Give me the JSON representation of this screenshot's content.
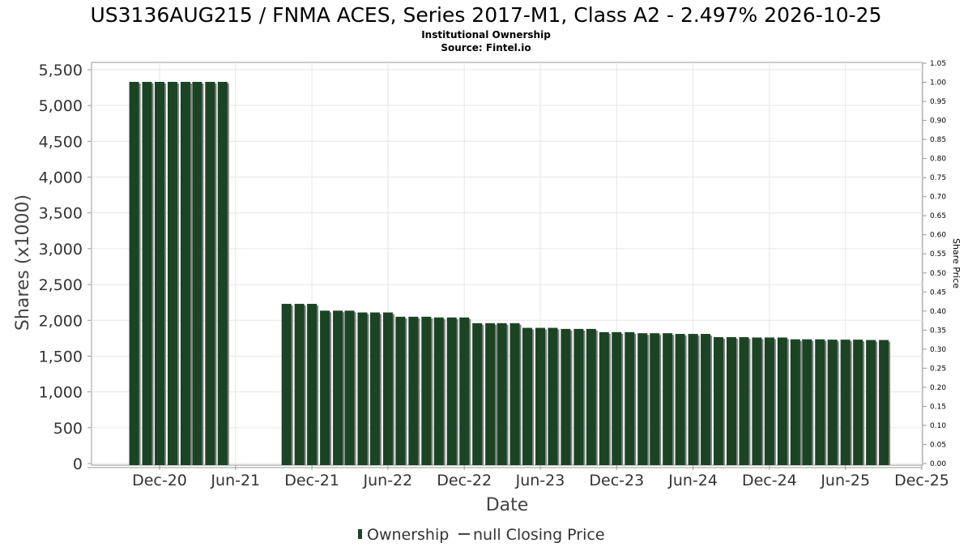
{
  "chart_data": {
    "type": "bar",
    "title": "US3136AUG215 / FNMA ACES, Series 2017-M1, Class A2 - 2.497% 2026-10-25",
    "subtitle": "Institutional Ownership",
    "source": "Source: Fintel.io",
    "xlabel": "Date",
    "ylabel": "Shares (x1000)",
    "y2label": "Share Price",
    "ylim": [
      0,
      5500
    ],
    "y2lim": [
      0,
      1.05
    ],
    "grid": true,
    "legend_position": "bottom",
    "x_start": "2020-06-01",
    "x_end": "2025-12-01",
    "x_tick_labels": [
      {
        "label": "Dec-20",
        "date": "2020-12-01"
      },
      {
        "label": "Jun-21",
        "date": "2021-06-01"
      },
      {
        "label": "Dec-21",
        "date": "2021-12-01"
      },
      {
        "label": "Jun-22",
        "date": "2022-06-01"
      },
      {
        "label": "Dec-22",
        "date": "2022-12-01"
      },
      {
        "label": "Jun-23",
        "date": "2023-06-01"
      },
      {
        "label": "Dec-23",
        "date": "2023-12-01"
      },
      {
        "label": "Jun-24",
        "date": "2024-06-01"
      },
      {
        "label": "Dec-24",
        "date": "2024-12-01"
      },
      {
        "label": "Jun-25",
        "date": "2025-06-01"
      },
      {
        "label": "Dec-25",
        "date": "2025-12-01"
      }
    ],
    "y_tick_labels": [
      "0",
      "500",
      "1,000",
      "1,500",
      "2,000",
      "2,500",
      "3,000",
      "3,500",
      "4,000",
      "4,500",
      "5,000",
      "5,500"
    ],
    "y_ticks": [
      0,
      500,
      1000,
      1500,
      2000,
      2500,
      3000,
      3500,
      4000,
      4500,
      5000,
      5500
    ],
    "y2_tick_labels": [
      "0.00",
      "0.05",
      "0.10",
      "0.15",
      "0.20",
      "0.25",
      "0.30",
      "0.35",
      "0.40",
      "0.45",
      "0.50",
      "0.55",
      "0.60",
      "0.65",
      "0.70",
      "0.75",
      "0.80",
      "0.85",
      "0.90",
      "0.95",
      "1.00",
      "1.05"
    ],
    "y2_ticks": [
      0,
      0.05,
      0.1,
      0.15,
      0.2,
      0.25,
      0.3,
      0.35,
      0.4,
      0.45,
      0.5,
      0.55,
      0.6,
      0.65,
      0.7,
      0.75,
      0.8,
      0.85,
      0.9,
      0.95,
      1.0,
      1.05
    ],
    "series": [
      {
        "name": "Ownership",
        "color": "#1b4425",
        "shadow_color": "#808080",
        "points": [
          {
            "date": "2020-10-01",
            "value": 5330
          },
          {
            "date": "2020-11-01",
            "value": 5330
          },
          {
            "date": "2020-12-01",
            "value": 5330
          },
          {
            "date": "2021-01-01",
            "value": 5330
          },
          {
            "date": "2021-02-01",
            "value": 5330
          },
          {
            "date": "2021-03-01",
            "value": 5330
          },
          {
            "date": "2021-04-01",
            "value": 5330
          },
          {
            "date": "2021-05-01",
            "value": 5330
          },
          {
            "date": "2021-10-01",
            "value": 2230
          },
          {
            "date": "2021-11-01",
            "value": 2230
          },
          {
            "date": "2021-12-01",
            "value": 2230
          },
          {
            "date": "2022-01-01",
            "value": 2135
          },
          {
            "date": "2022-02-01",
            "value": 2135
          },
          {
            "date": "2022-03-01",
            "value": 2135
          },
          {
            "date": "2022-04-01",
            "value": 2110
          },
          {
            "date": "2022-05-01",
            "value": 2110
          },
          {
            "date": "2022-06-01",
            "value": 2110
          },
          {
            "date": "2022-07-01",
            "value": 2050
          },
          {
            "date": "2022-08-01",
            "value": 2050
          },
          {
            "date": "2022-09-01",
            "value": 2050
          },
          {
            "date": "2022-10-01",
            "value": 2040
          },
          {
            "date": "2022-11-01",
            "value": 2040
          },
          {
            "date": "2022-12-01",
            "value": 2040
          },
          {
            "date": "2023-01-01",
            "value": 1960
          },
          {
            "date": "2023-02-01",
            "value": 1960
          },
          {
            "date": "2023-03-01",
            "value": 1960
          },
          {
            "date": "2023-04-01",
            "value": 1960
          },
          {
            "date": "2023-05-01",
            "value": 1895
          },
          {
            "date": "2023-06-01",
            "value": 1895
          },
          {
            "date": "2023-07-01",
            "value": 1895
          },
          {
            "date": "2023-08-01",
            "value": 1880
          },
          {
            "date": "2023-09-01",
            "value": 1880
          },
          {
            "date": "2023-10-01",
            "value": 1880
          },
          {
            "date": "2023-11-01",
            "value": 1835
          },
          {
            "date": "2023-12-01",
            "value": 1835
          },
          {
            "date": "2024-01-01",
            "value": 1835
          },
          {
            "date": "2024-02-01",
            "value": 1820
          },
          {
            "date": "2024-03-01",
            "value": 1820
          },
          {
            "date": "2024-04-01",
            "value": 1820
          },
          {
            "date": "2024-05-01",
            "value": 1810
          },
          {
            "date": "2024-06-01",
            "value": 1810
          },
          {
            "date": "2024-07-01",
            "value": 1810
          },
          {
            "date": "2024-08-01",
            "value": 1765
          },
          {
            "date": "2024-09-01",
            "value": 1765
          },
          {
            "date": "2024-10-01",
            "value": 1765
          },
          {
            "date": "2024-11-01",
            "value": 1760
          },
          {
            "date": "2024-12-01",
            "value": 1760
          },
          {
            "date": "2025-01-01",
            "value": 1760
          },
          {
            "date": "2025-02-01",
            "value": 1735
          },
          {
            "date": "2025-03-01",
            "value": 1735
          },
          {
            "date": "2025-04-01",
            "value": 1735
          },
          {
            "date": "2025-05-01",
            "value": 1730
          },
          {
            "date": "2025-06-01",
            "value": 1730
          },
          {
            "date": "2025-07-01",
            "value": 1730
          },
          {
            "date": "2025-08-01",
            "value": 1725
          },
          {
            "date": "2025-09-01",
            "value": 1725
          }
        ]
      },
      {
        "name": "null Closing Price",
        "color": "#444444",
        "points": []
      }
    ]
  },
  "legend": {
    "ownership_label": "Ownership",
    "price_label": "null Closing Price"
  }
}
